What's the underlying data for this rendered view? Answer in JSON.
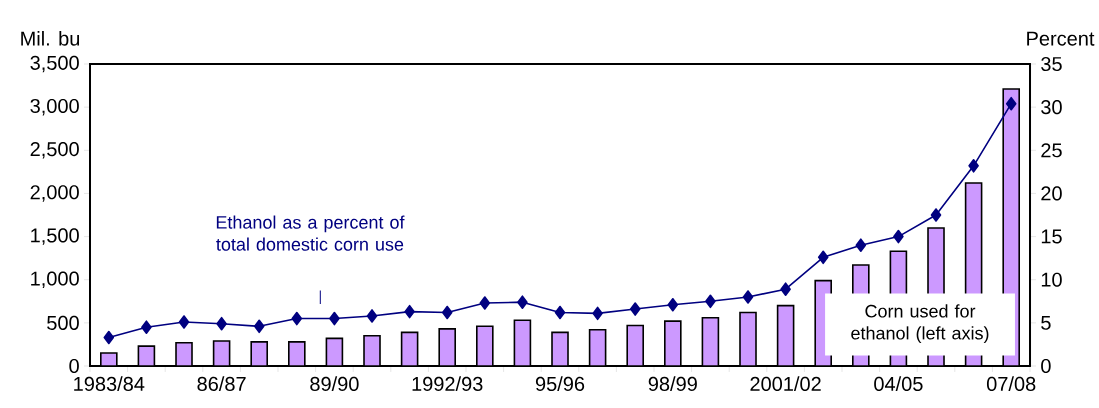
{
  "chart_data": {
    "type": "bar",
    "ylabel": "Mil. bu",
    "y2label": "Percent",
    "marker": "diamond",
    "categories": [
      "1983/84",
      null,
      null,
      "86/87",
      null,
      null,
      "89/90",
      null,
      null,
      "1992/93",
      null,
      null,
      "95/96",
      null,
      null,
      "98/99",
      null,
      null,
      "2001/02",
      null,
      null,
      "04/05",
      null,
      null,
      "07/08"
    ],
    "series": [
      {
        "name": "Corn used for ethanol (left axis)",
        "color": "#cc99ff",
        "values": [
          150,
          230,
          270,
          290,
          280,
          280,
          320,
          350,
          390,
          430,
          460,
          530,
          390,
          420,
          470,
          520,
          560,
          620,
          700,
          990,
          1170,
          1330,
          1600,
          2120,
          3210
        ]
      },
      {
        "name": "Ethanol as a percent of total domestic corn use",
        "type": "line",
        "axis": "y2",
        "color": "#000080",
        "values": [
          3.3,
          4.5,
          5.1,
          4.9,
          4.6,
          5.5,
          5.5,
          5.8,
          6.3,
          6.2,
          7.3,
          7.4,
          6.2,
          6.1,
          6.6,
          7.1,
          7.5,
          8.0,
          8.9,
          12.6,
          14.0,
          15.0,
          17.5,
          23.2,
          30.4
        ]
      }
    ],
    "ylim": [
      0,
      3500
    ],
    "yticks": [
      {
        "value": 0,
        "label": "0"
      },
      {
        "value": 500,
        "label": "500"
      },
      {
        "value": 1000,
        "label": "1,000"
      },
      {
        "value": 1500,
        "label": "1,500"
      },
      {
        "value": 2000,
        "label": "2,000"
      },
      {
        "value": 2500,
        "label": "2,500"
      },
      {
        "value": 3000,
        "label": "3,000"
      },
      {
        "value": 3500,
        "label": "3,500"
      }
    ],
    "y2lim": [
      0,
      35
    ],
    "y2ticks": [
      0,
      5,
      10,
      15,
      20,
      25,
      30,
      35
    ]
  }
}
